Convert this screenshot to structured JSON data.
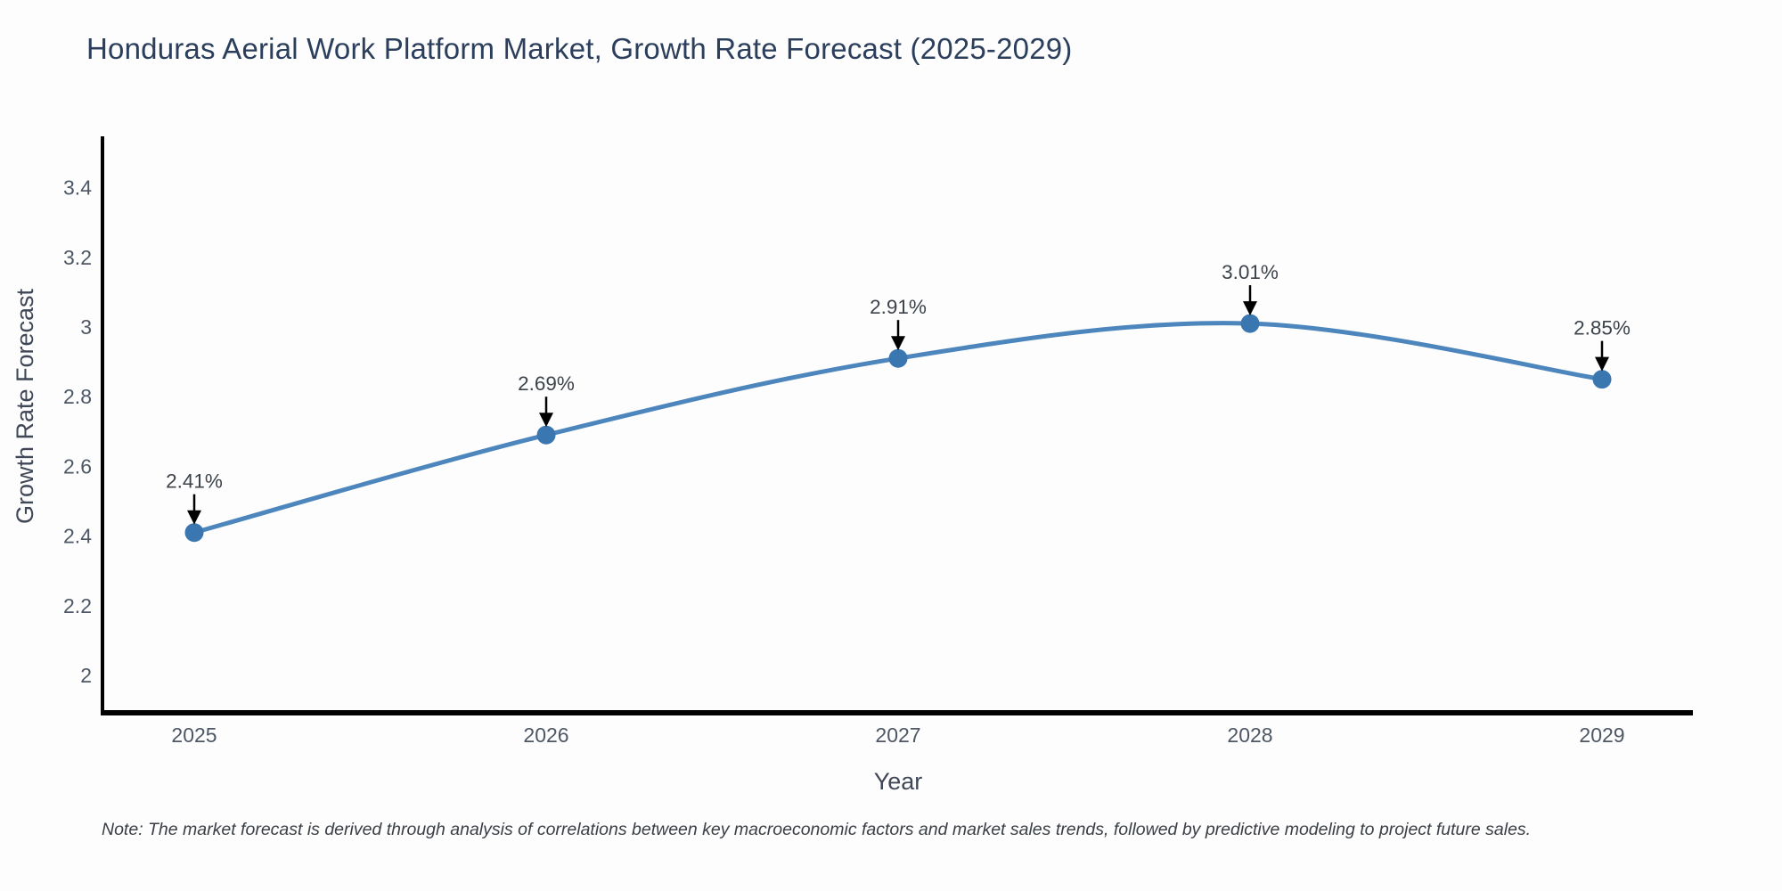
{
  "title": "Honduras Aerial Work Platform Market, Growth Rate Forecast (2025-2029)",
  "note": "Note: The market forecast is derived through analysis of correlations between key macroeconomic factors and market sales trends, followed by predictive modeling to project future sales.",
  "chart_data": {
    "type": "line",
    "title": "Honduras Aerial Work Platform Market, Growth Rate Forecast (2025-2029)",
    "xlabel": "Year",
    "ylabel": "Growth Rate Forecast",
    "x": [
      2025,
      2026,
      2027,
      2028,
      2029
    ],
    "xtick_labels": [
      "2025",
      "2026",
      "2027",
      "2028",
      "2029"
    ],
    "series": [
      {
        "name": "Growth Rate Forecast",
        "values": [
          2.41,
          2.69,
          2.91,
          3.01,
          2.85
        ],
        "point_labels": [
          "2.41%",
          "2.69%",
          "2.91%",
          "3.01%",
          "2.85%"
        ]
      }
    ],
    "yticks": [
      2,
      2.2,
      2.4,
      2.6,
      2.8,
      3,
      3.2,
      3.4
    ],
    "ytick_labels": [
      "2",
      "2.2",
      "2.4",
      "2.6",
      "2.8",
      "3",
      "3.2",
      "3.4"
    ],
    "ylim": [
      1.9,
      3.55
    ],
    "grid": false,
    "legend": "none",
    "smooth": true,
    "line_color": "#4d86bd",
    "marker_color": "#3a76af",
    "arrow_color": "#000000",
    "axis_color": "#000000"
  }
}
